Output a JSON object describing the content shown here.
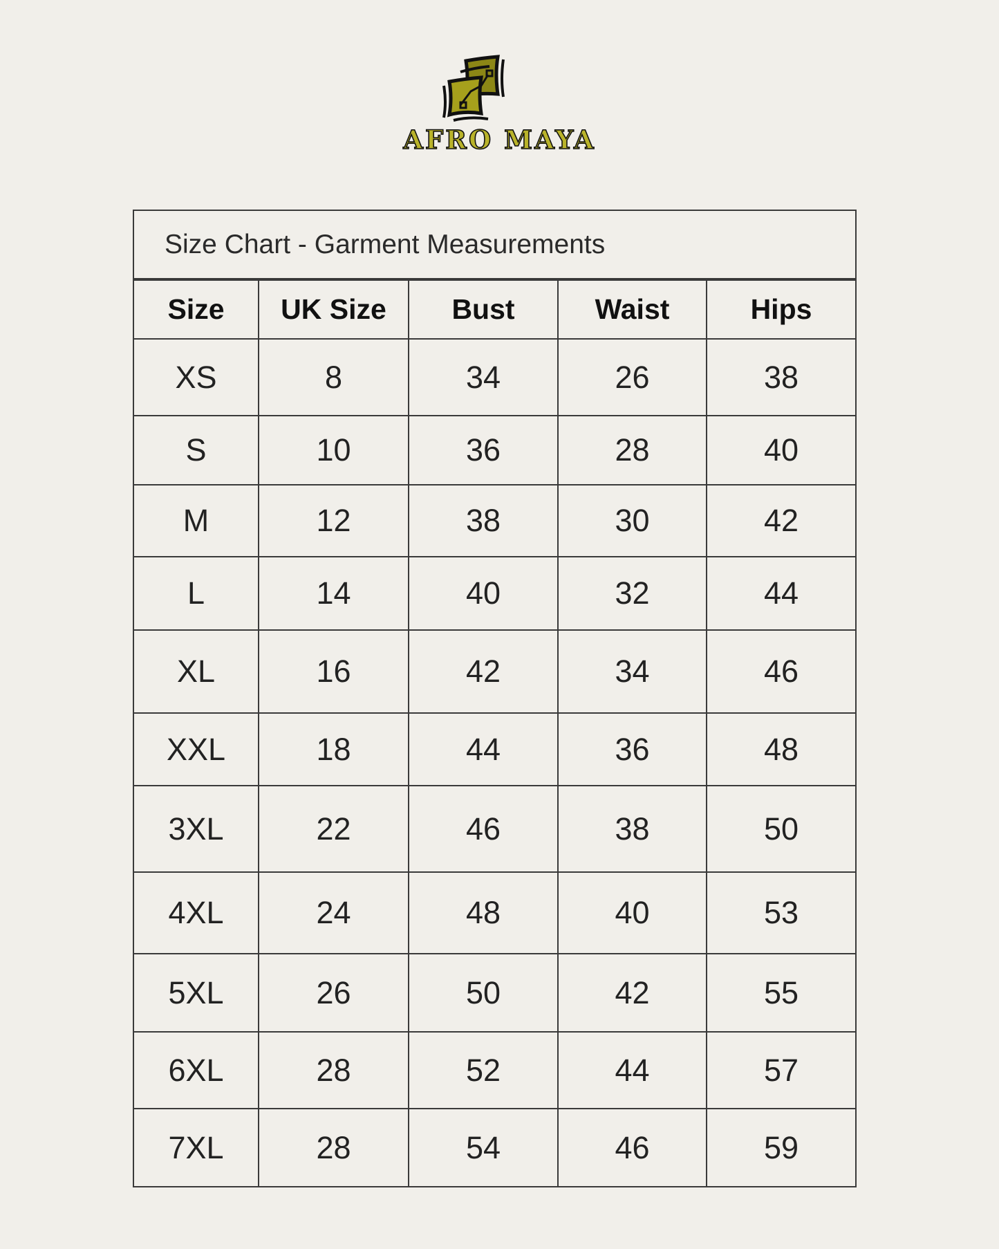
{
  "brand": {
    "name": "AFRO MAYA",
    "colors": {
      "gold": "#b9b32a",
      "outline": "#111111"
    }
  },
  "chart_data": {
    "type": "table",
    "title": "Size Chart - Garment Measurements",
    "columns": [
      "Size",
      "UK Size",
      "Bust",
      "Waist",
      "Hips"
    ],
    "rows": [
      [
        "XS",
        "8",
        "34",
        "26",
        "38"
      ],
      [
        "S",
        "10",
        "36",
        "28",
        "40"
      ],
      [
        "M",
        "12",
        "38",
        "30",
        "42"
      ],
      [
        "L",
        "14",
        "40",
        "32",
        "44"
      ],
      [
        "XL",
        "16",
        "42",
        "34",
        "46"
      ],
      [
        "XXL",
        "18",
        "44",
        "36",
        "48"
      ],
      [
        "3XL",
        "22",
        "46",
        "38",
        "50"
      ],
      [
        "4XL",
        "24",
        "48",
        "40",
        "53"
      ],
      [
        "5XL",
        "26",
        "50",
        "42",
        "55"
      ],
      [
        "6XL",
        "28",
        "52",
        "44",
        "57"
      ],
      [
        "7XL",
        "28",
        "54",
        "46",
        "59"
      ]
    ]
  }
}
